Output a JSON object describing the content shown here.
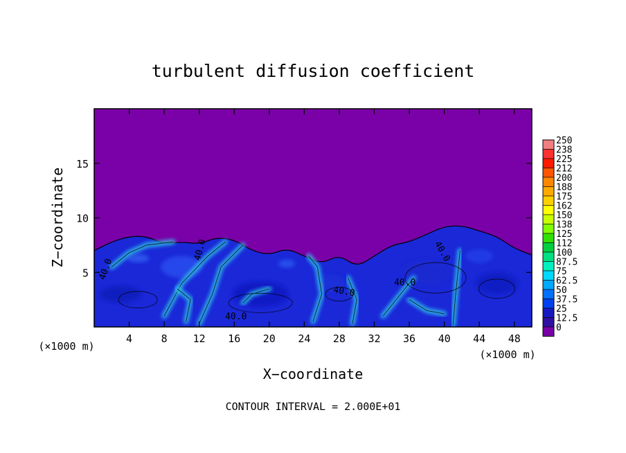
{
  "chart_data": {
    "type": "heatmap",
    "title": "turbulent diffusion coefficient",
    "xlabel": "X−coordinate",
    "ylabel": "Z−coordinate",
    "x_unit_left": "(×1000 m)",
    "x_unit_right": "(×1000 m)",
    "footer": "CONTOUR INTERVAL = 2.000E+01",
    "xlim": [
      0,
      50
    ],
    "ylim": [
      0,
      20
    ],
    "x_ticks": [
      4,
      8,
      12,
      16,
      20,
      24,
      28,
      32,
      36,
      40,
      44,
      48
    ],
    "y_ticks": [
      5,
      10,
      15
    ],
    "contour_labels": [
      "40.0",
      "40.0",
      "40.0",
      "40.0",
      "40.0",
      "40.0"
    ],
    "colorbar": {
      "labels": [
        "250",
        "238",
        "225",
        "212",
        "200",
        "188",
        "175",
        "162",
        "150",
        "138",
        "125",
        "112",
        "100",
        "87.5",
        "75",
        "62.5",
        "50",
        "37.5",
        "25",
        "12.5",
        "0"
      ],
      "colors": [
        "#f08080",
        "#ff3030",
        "#ff1a00",
        "#ff5500",
        "#ff8800",
        "#ffaa00",
        "#ffd000",
        "#ffff00",
        "#c8ff00",
        "#80ff00",
        "#30e000",
        "#00d040",
        "#00e080",
        "#00f0c0",
        "#00d8ff",
        "#00a8ff",
        "#0070ff",
        "#0040f0",
        "#1818c0",
        "#3010a0",
        "#7a00a8"
      ]
    },
    "background_value_color": "#7a00a8",
    "top_boundary_z": [
      7,
      7.8,
      8.3,
      8.3,
      7.6,
      7.8,
      7.6,
      8.2,
      8.0,
      7.0,
      6.6,
      7.2,
      6.5,
      5.8,
      6.6,
      5.5,
      6.5,
      7.5,
      7.8,
      8.5,
      9.2,
      9.3,
      8.8,
      8.3,
      7.2,
      6.6
    ]
  }
}
